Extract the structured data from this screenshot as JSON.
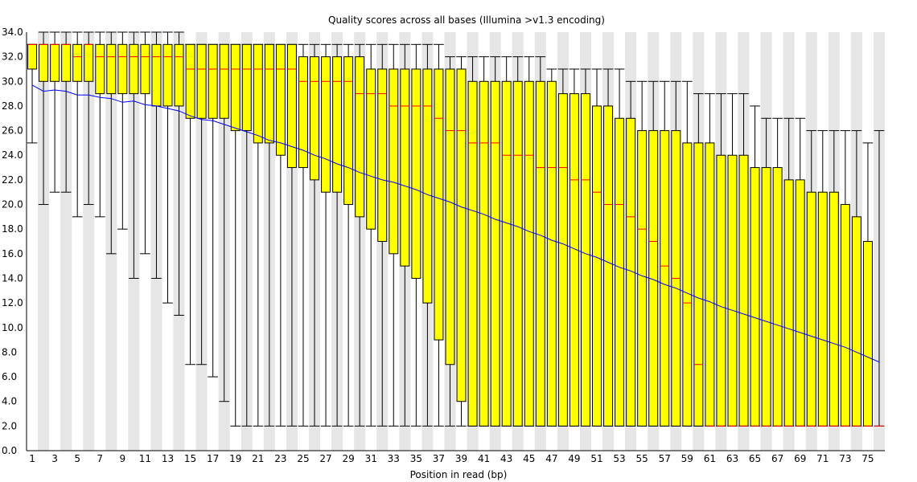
{
  "chart_data": {
    "type": "boxplot",
    "title": "Quality scores across all bases (Illumina >v1.3 encoding)",
    "xlabel": "Position in read (bp)",
    "ylabel": "",
    "ylim": [
      0,
      34
    ],
    "yticks": [
      "0.0",
      "2.0",
      "4.0",
      "6.0",
      "8.0",
      "10.0",
      "12.0",
      "14.0",
      "16.0",
      "18.0",
      "20.0",
      "22.0",
      "24.0",
      "26.0",
      "28.0",
      "30.0",
      "32.0",
      "34.0"
    ],
    "xtick_labels": [
      "1",
      "3",
      "5",
      "7",
      "9",
      "11",
      "13",
      "15",
      "17",
      "19",
      "21",
      "23",
      "25",
      "27",
      "29",
      "31",
      "33",
      "35",
      "37",
      "39",
      "41",
      "43",
      "45",
      "47",
      "49",
      "51",
      "53",
      "55",
      "57",
      "59",
      "61",
      "63",
      "65",
      "67",
      "69",
      "71",
      "73",
      "75"
    ],
    "grid": "alternating vertical bands",
    "colors": {
      "box": "#ffff00",
      "median": "#ff0000",
      "mean": "#0000ff",
      "whisker": "#000000",
      "band": "#e6e6e6"
    },
    "positions": [
      1,
      2,
      3,
      4,
      5,
      6,
      7,
      8,
      9,
      10,
      11,
      12,
      13,
      14,
      15,
      16,
      17,
      18,
      19,
      20,
      21,
      22,
      23,
      24,
      25,
      26,
      27,
      28,
      29,
      30,
      31,
      32,
      33,
      34,
      35,
      36,
      37,
      38,
      39,
      40,
      41,
      42,
      43,
      44,
      45,
      46,
      47,
      48,
      49,
      50,
      51,
      52,
      53,
      54,
      55,
      56,
      57,
      58,
      59,
      60,
      61,
      62,
      63,
      64,
      65,
      66,
      67,
      68,
      69,
      70,
      71,
      72,
      73,
      74,
      75,
      76
    ],
    "q1": [
      31,
      30,
      30,
      30,
      30,
      30,
      29,
      29,
      29,
      29,
      29,
      28,
      28,
      28,
      27,
      27,
      27,
      27,
      26,
      26,
      25,
      25,
      24,
      23,
      23,
      22,
      21,
      21,
      20,
      19,
      18,
      17,
      16,
      15,
      14,
      12,
      9,
      7,
      4,
      2,
      2,
      2,
      2,
      2,
      2,
      2,
      2,
      2,
      2,
      2,
      2,
      2,
      2,
      2,
      2,
      2,
      2,
      2,
      2,
      2,
      2,
      2,
      2,
      2,
      2,
      2,
      2,
      2,
      2,
      2,
      2,
      2,
      2,
      2,
      2,
      2
    ],
    "q3": [
      33,
      33,
      33,
      33,
      33,
      33,
      33,
      33,
      33,
      33,
      33,
      33,
      33,
      33,
      33,
      33,
      33,
      33,
      33,
      33,
      33,
      33,
      33,
      33,
      32,
      32,
      32,
      32,
      32,
      32,
      31,
      31,
      31,
      31,
      31,
      31,
      31,
      31,
      31,
      30,
      30,
      30,
      30,
      30,
      30,
      30,
      30,
      29,
      29,
      29,
      28,
      28,
      27,
      27,
      26,
      26,
      26,
      26,
      25,
      25,
      25,
      24,
      24,
      24,
      23,
      23,
      23,
      22,
      22,
      21,
      21,
      21,
      20,
      19,
      17,
      2
    ],
    "median": [
      33,
      33,
      33,
      33,
      32,
      33,
      32,
      32,
      32,
      32,
      32,
      32,
      32,
      32,
      31,
      31,
      31,
      31,
      31,
      31,
      31,
      31,
      31,
      31,
      30,
      30,
      30,
      30,
      30,
      29,
      29,
      29,
      28,
      28,
      28,
      28,
      27,
      26,
      26,
      25,
      25,
      25,
      24,
      24,
      24,
      23,
      23,
      23,
      22,
      22,
      21,
      20,
      20,
      19,
      18,
      17,
      15,
      14,
      12,
      7,
      2,
      2,
      2,
      2,
      2,
      2,
      2,
      2,
      2,
      2,
      2,
      2,
      2,
      2,
      2,
      2
    ],
    "lower_whisker": [
      25,
      20,
      21,
      21,
      19,
      20,
      19,
      16,
      18,
      14,
      16,
      14,
      12,
      11,
      7,
      7,
      6,
      4,
      2,
      2,
      2,
      2,
      2,
      2,
      2,
      2,
      2,
      2,
      2,
      2,
      2,
      2,
      2,
      2,
      2,
      2,
      2,
      2,
      2,
      2,
      2,
      2,
      2,
      2,
      2,
      2,
      2,
      2,
      2,
      2,
      2,
      2,
      2,
      2,
      2,
      2,
      2,
      2,
      2,
      2,
      2,
      2,
      2,
      2,
      2,
      2,
      2,
      2,
      2,
      2,
      2,
      2,
      2,
      2,
      2,
      2
    ],
    "upper_whisker": [
      33,
      34,
      34,
      34,
      34,
      34,
      34,
      34,
      34,
      34,
      34,
      34,
      34,
      34,
      33,
      33,
      33,
      33,
      33,
      33,
      33,
      33,
      33,
      33,
      33,
      33,
      33,
      33,
      33,
      33,
      33,
      33,
      33,
      33,
      33,
      33,
      33,
      32,
      32,
      32,
      32,
      32,
      32,
      32,
      32,
      32,
      31,
      31,
      31,
      31,
      31,
      31,
      31,
      30,
      30,
      30,
      30,
      30,
      30,
      29,
      29,
      29,
      29,
      29,
      28,
      27,
      27,
      27,
      27,
      26,
      26,
      26,
      26,
      26,
      25,
      26
    ],
    "mean": [
      29.7,
      29.2,
      29.3,
      29.2,
      28.9,
      28.9,
      28.7,
      28.6,
      28.3,
      28.4,
      28.1,
      28.0,
      27.8,
      27.6,
      27.2,
      26.9,
      26.8,
      26.5,
      26.2,
      25.9,
      25.6,
      25.2,
      25.0,
      24.7,
      24.4,
      24.0,
      23.7,
      23.3,
      23.0,
      22.6,
      22.3,
      22.0,
      21.8,
      21.5,
      21.2,
      20.8,
      20.5,
      20.2,
      19.8,
      19.5,
      19.2,
      18.8,
      18.5,
      18.2,
      17.8,
      17.5,
      17.1,
      16.8,
      16.4,
      16.0,
      15.7,
      15.3,
      14.9,
      14.6,
      14.2,
      13.9,
      13.5,
      13.2,
      12.8,
      12.4,
      12.1,
      11.7,
      11.4,
      11.1,
      10.8,
      10.5,
      10.2,
      9.9,
      9.6,
      9.3,
      9.0,
      8.7,
      8.4,
      8.0,
      7.6,
      7.2
    ]
  }
}
